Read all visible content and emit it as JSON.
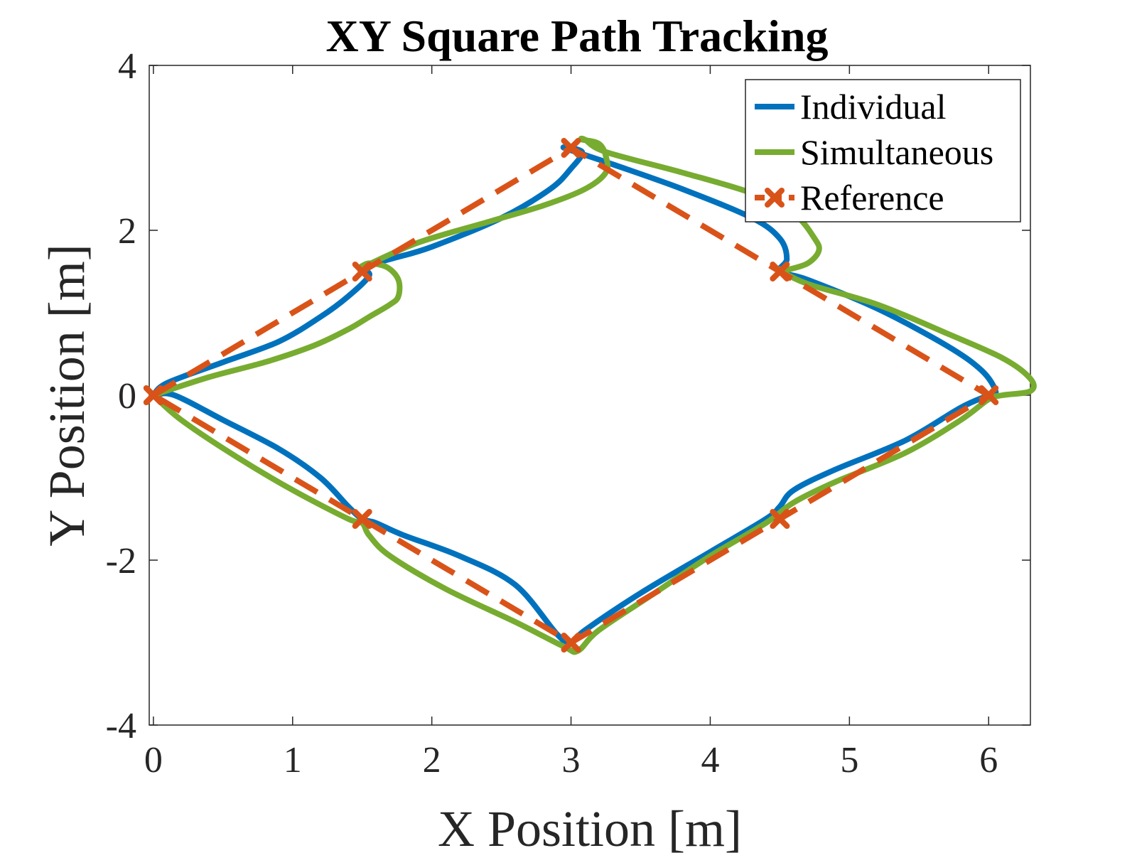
{
  "chart_data": {
    "type": "line",
    "title": "XY Square Path Tracking",
    "xlabel": "X Position [m]",
    "ylabel": "Y Position [m]",
    "xlim": [
      -0.03,
      6.3
    ],
    "ylim": [
      -4,
      4
    ],
    "xticks": [
      "0",
      "1",
      "2",
      "3",
      "4",
      "5",
      "6"
    ],
    "yticks": [
      "-4",
      "-2",
      "0",
      "2",
      "4"
    ],
    "grid": false,
    "legend_position": "top-right",
    "series": [
      {
        "name": "Individual",
        "color": "#0072BD",
        "style": "solid",
        "x": [
          0,
          0.1,
          0.5,
          0.9,
          1.2,
          1.4,
          1.55,
          1.5,
          1.7,
          2.0,
          2.5,
          2.85,
          3.0,
          3.08,
          2.95,
          3.3,
          3.8,
          4.3,
          4.5,
          4.55,
          4.5,
          4.7,
          5.2,
          5.7,
          5.95,
          6.05,
          6.0,
          5.8,
          5.4,
          4.9,
          4.6,
          4.5,
          4.4,
          4.0,
          3.5,
          3.1,
          3.0,
          2.9,
          2.6,
          2.2,
          1.8,
          1.6,
          1.5,
          1.4,
          1.2,
          0.9,
          0.5,
          0.15,
          0,
          0
        ],
        "y": [
          0,
          0.15,
          0.4,
          0.65,
          0.95,
          1.2,
          1.45,
          1.55,
          1.65,
          1.8,
          2.15,
          2.5,
          2.75,
          2.95,
          3.0,
          2.8,
          2.5,
          2.15,
          1.9,
          1.65,
          1.5,
          1.4,
          1.05,
          0.6,
          0.3,
          0.05,
          0,
          -0.15,
          -0.55,
          -0.9,
          -1.15,
          -1.35,
          -1.5,
          -1.9,
          -2.4,
          -2.85,
          -3.0,
          -2.9,
          -2.3,
          -1.95,
          -1.7,
          -1.55,
          -1.5,
          -1.35,
          -1.0,
          -0.65,
          -0.3,
          0,
          0,
          0
        ]
      },
      {
        "name": "Simultaneous",
        "color": "#77AC30",
        "style": "solid",
        "x": [
          0,
          0.4,
          0.8,
          1.15,
          1.4,
          1.55,
          1.7,
          1.76,
          1.76,
          1.68,
          1.55,
          1.5,
          1.9,
          2.4,
          2.8,
          3.1,
          3.25,
          3.25,
          3.2,
          3.08,
          3.1,
          3.25,
          3.8,
          4.3,
          4.6,
          4.75,
          4.78,
          4.7,
          4.55,
          4.5,
          4.7,
          5.2,
          5.7,
          6.1,
          6.3,
          6.3,
          6.1,
          6.0,
          5.8,
          5.4,
          4.9,
          4.6,
          4.4,
          4.0,
          3.6,
          3.2,
          3.05,
          2.95,
          2.6,
          2.1,
          1.7,
          1.55,
          1.5,
          1.4,
          1.0,
          0.6,
          0.2,
          0
        ],
        "y": [
          0,
          0.22,
          0.4,
          0.6,
          0.8,
          0.95,
          1.1,
          1.2,
          1.4,
          1.55,
          1.6,
          1.55,
          1.85,
          2.1,
          2.3,
          2.5,
          2.7,
          2.9,
          3.05,
          3.1,
          3.1,
          2.95,
          2.7,
          2.45,
          2.2,
          1.9,
          1.75,
          1.6,
          1.52,
          1.52,
          1.35,
          1.1,
          0.75,
          0.45,
          0.2,
          0.05,
          0,
          -0.05,
          -0.3,
          -0.7,
          -1.05,
          -1.3,
          -1.55,
          -1.95,
          -2.4,
          -2.85,
          -3.1,
          -3.05,
          -2.75,
          -2.35,
          -1.95,
          -1.7,
          -1.55,
          -1.5,
          -1.15,
          -0.75,
          -0.3,
          0
        ]
      },
      {
        "name": "Reference",
        "color": "#D95319",
        "style": "dashed",
        "marker": "x",
        "x": [
          0,
          1.5,
          3,
          4.5,
          6,
          4.5,
          3,
          1.5,
          0
        ],
        "y": [
          0,
          1.5,
          3,
          1.5,
          0,
          -1.5,
          -3,
          -1.5,
          0
        ]
      }
    ]
  }
}
